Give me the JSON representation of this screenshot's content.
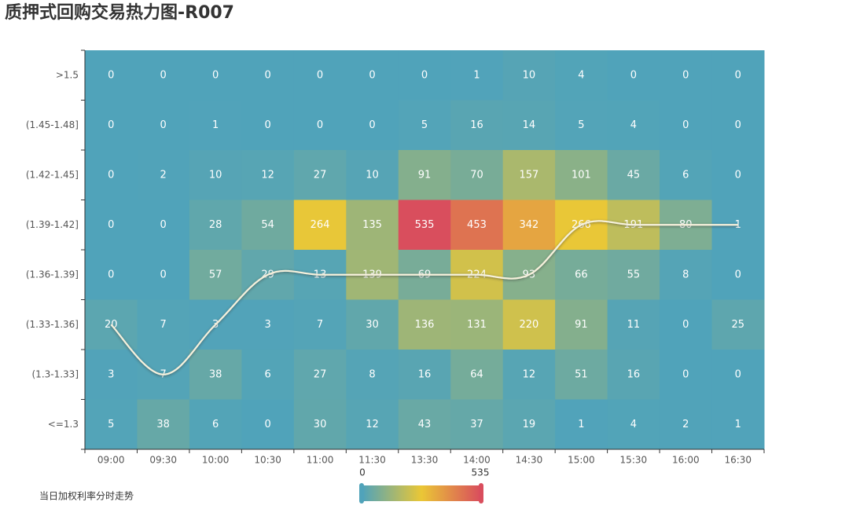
{
  "chart_data": {
    "type": "heatmap",
    "title": "质押式回购交易热力图-R007",
    "x": [
      "09:00",
      "09:30",
      "10:00",
      "10:30",
      "11:00",
      "11:30",
      "13:30",
      "14:00",
      "14:30",
      "15:00",
      "15:30",
      "16:00",
      "16:30"
    ],
    "y": [
      ">1.5",
      "(1.45-1.48]",
      "(1.42-1.45]",
      "(1.39-1.42]",
      "(1.36-1.39]",
      "(1.33-1.36]",
      "(1.3-1.33]",
      "<=1.3"
    ],
    "values": [
      [
        0,
        0,
        0,
        0,
        0,
        0,
        0,
        1,
        10,
        4,
        0,
        0,
        0
      ],
      [
        0,
        0,
        1,
        0,
        0,
        0,
        5,
        16,
        14,
        5,
        4,
        0,
        0
      ],
      [
        0,
        2,
        10,
        12,
        27,
        10,
        91,
        70,
        157,
        101,
        45,
        6,
        0
      ],
      [
        0,
        0,
        28,
        54,
        264,
        135,
        535,
        453,
        342,
        266,
        191,
        80,
        1
      ],
      [
        0,
        0,
        57,
        29,
        13,
        139,
        69,
        224,
        93,
        66,
        55,
        8,
        0
      ],
      [
        20,
        7,
        3,
        3,
        7,
        30,
        136,
        131,
        220,
        91,
        11,
        0,
        25
      ],
      [
        3,
        7,
        38,
        6,
        27,
        8,
        16,
        64,
        12,
        51,
        16,
        0,
        0
      ],
      [
        5,
        38,
        6,
        0,
        30,
        12,
        43,
        37,
        19,
        1,
        4,
        2,
        1
      ]
    ],
    "visual_map": {
      "min": 0,
      "max": 535,
      "colors": [
        "#50a3ba",
        "#eac736",
        "#d94e5d"
      ]
    },
    "line": {
      "name": "当日加权利率分时走势",
      "color": "#f6f1dc",
      "values": [
        "(1.33-1.36]",
        "(1.3-1.33]",
        "(1.33-1.36]",
        "(1.36-1.39]",
        "(1.36-1.39]",
        "(1.36-1.39]",
        "(1.36-1.39]",
        "(1.36-1.39]",
        "(1.36-1.39]",
        "(1.39-1.42]",
        "(1.39-1.42]",
        "(1.39-1.42]",
        "(1.39-1.42]"
      ]
    }
  }
}
